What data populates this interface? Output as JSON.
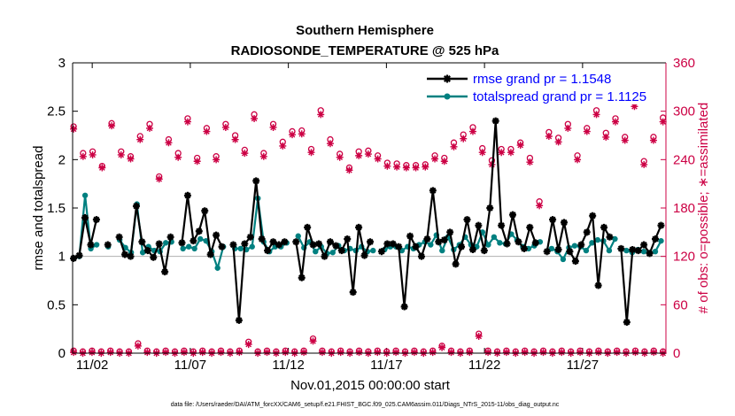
{
  "chart_data": {
    "type": "line",
    "title": "Southern Hemisphere",
    "subtitle": "RADIOSONDE_TEMPERATURE @ 525 hPa",
    "xlabel": "Nov.01,2015 00:00:00 start",
    "ylabel": "rmse and totalspread",
    "y2label": "# of obs: o=possible; ∗=assimilated",
    "x_ticks": [
      {
        "day": 2,
        "label": "11/02"
      },
      {
        "day": 7,
        "label": "11/07"
      },
      {
        "day": 12,
        "label": "11/12"
      },
      {
        "day": 17,
        "label": "11/17"
      },
      {
        "day": 22,
        "label": "11/22"
      },
      {
        "day": 27,
        "label": "11/27"
      }
    ],
    "xlim": [
      1.0,
      31.25
    ],
    "ylim": [
      0,
      3
    ],
    "y_ticks": [
      0,
      0.5,
      1,
      1.5,
      2,
      2.5,
      3
    ],
    "y_tick_labels": [
      "0",
      "0.5",
      "1",
      "1.5",
      "2",
      "2.5",
      "3"
    ],
    "y2lim": [
      0,
      360
    ],
    "y2_ticks": [
      0,
      60,
      120,
      180,
      240,
      300,
      360
    ],
    "y2_tick_labels": [
      "0",
      "60",
      "120",
      "180",
      "240",
      "300",
      "360"
    ],
    "footnote": "data file: /Users/raeder/DAI/ATM_forcXX/CAM6_setup/f.e21.FHIST_BGC.f09_025.CAM6assim.011/Diags_NTrS_2015-11/obs_diag_output.nc",
    "colors": {
      "rmse": "#000000",
      "spread": "#008080",
      "obs": "#cc0044",
      "legend_text": "#0000ff",
      "right_axis": "#cc0044"
    },
    "series": [
      {
        "name": "rmse grand pr = 1.1548",
        "values": [
          0.98,
          1.01,
          1.4,
          1.12,
          1.38,
          null,
          1.12,
          null,
          1.2,
          1.02,
          1.0,
          1.52,
          1.15,
          1.06,
          0.99,
          1.13,
          0.84,
          1.2,
          null,
          1.14,
          1.63,
          1.16,
          1.26,
          1.47,
          1.02,
          1.22,
          1.1,
          null,
          1.12,
          0.34,
          1.13,
          1.2,
          1.78,
          1.18,
          1.06,
          1.15,
          1.12,
          1.15,
          null,
          1.15,
          0.78,
          1.3,
          1.12,
          1.13,
          1.0,
          1.15,
          1.11,
          1.06,
          1.18,
          0.63,
          1.3,
          1.01,
          1.15,
          null,
          1.05,
          1.13,
          1.13,
          1.1,
          0.48,
          1.21,
          1.1,
          1.0,
          1.18,
          1.68,
          1.15,
          1.17,
          1.25,
          0.92,
          1.1,
          1.38,
          1.07,
          1.32,
          1.06,
          1.5,
          2.4,
          1.32,
          1.13,
          1.43,
          1.15,
          1.08,
          1.3,
          1.14,
          null,
          1.05,
          1.38,
          1.07,
          1.35,
          1.05,
          0.95,
          1.12,
          1.25,
          1.42,
          0.7,
          1.3,
          1.2,
          null,
          1.08,
          0.32,
          1.07,
          1.06,
          1.12,
          1.03,
          1.18,
          1.32
        ],
        "symbol": "asterisk"
      },
      {
        "name": "totalspread grand pr = 1.1125",
        "values": [
          0.98,
          1.0,
          1.63,
          1.08,
          1.12,
          null,
          1.1,
          null,
          1.17,
          1.09,
          1.04,
          1.54,
          1.04,
          1.1,
          1.06,
          1.05,
          1.14,
          1.15,
          null,
          1.08,
          1.1,
          1.08,
          1.18,
          1.16,
          1.05,
          0.88,
          1.1,
          null,
          1.08,
          1.08,
          1.07,
          1.1,
          1.6,
          1.15,
          1.05,
          1.1,
          1.1,
          1.14,
          null,
          1.21,
          1.09,
          1.15,
          1.05,
          1.1,
          1.03,
          1.04,
          1.11,
          1.06,
          1.08,
          1.06,
          1.1,
          1.05,
          1.06,
          null,
          1.07,
          1.1,
          1.1,
          1.06,
          1.1,
          1.08,
          1.12,
          1.15,
          1.12,
          1.22,
          1.06,
          1.2,
          1.07,
          1.12,
          1.2,
          1.12,
          1.1,
          1.25,
          1.12,
          1.2,
          1.14,
          1.13,
          1.23,
          1.17,
          1.1,
          1.08,
          1.11,
          1.15,
          null,
          1.08,
          1.05,
          0.97,
          1.09,
          1.11,
          1.1,
          1.06,
          1.14,
          1.17,
          1.16,
          1.06,
          1.18,
          null,
          1.06,
          1.04,
          1.07,
          1.05,
          1.03,
          1.05,
          1.16
        ],
        "symbol": "dot"
      },
      {
        "name": "obs possible",
        "axis": "right",
        "symbol": "circle",
        "values": [
          281,
          248,
          250,
          232,
          285,
          250,
          244,
          269,
          284,
          219,
          265,
          248,
          291,
          242,
          279,
          244,
          284,
          270,
          252,
          296,
          248,
          284,
          262,
          275,
          276,
          253,
          301,
          265,
          247,
          230,
          250,
          251,
          245,
          236,
          235,
          233,
          233,
          234,
          245,
          242,
          261,
          271,
          280,
          254,
          239,
          253,
          253,
          261,
          242,
          188,
          274,
          267,
          284,
          245,
          279,
          301,
          273,
          291,
          268,
          311,
          238,
          268,
          292
        ]
      },
      {
        "name": "obs assimilated",
        "axis": "right",
        "symbol": "asterisk",
        "values": [
          279,
          245,
          247,
          231,
          283,
          247,
          242,
          266,
          280,
          217,
          262,
          244,
          288,
          239,
          276,
          241,
          281,
          266,
          249,
          292,
          245,
          281,
          258,
          272,
          273,
          250,
          297,
          261,
          244,
          228,
          246,
          248,
          242,
          233,
          232,
          231,
          231,
          232,
          242,
          239,
          257,
          267,
          276,
          250,
          235,
          250,
          250,
          259,
          238,
          184,
          270,
          263,
          280,
          241,
          276,
          297,
          269,
          288,
          265,
          307,
          235,
          265,
          288
        ]
      },
      {
        "name": "obs low possible",
        "axis": "right",
        "symbol": "circle",
        "values": [
          3,
          2,
          3,
          2,
          3,
          2,
          2,
          12,
          3,
          2,
          3,
          2,
          3,
          2,
          3,
          2,
          3,
          2,
          3,
          14,
          2,
          3,
          2,
          3,
          2,
          3,
          18,
          3,
          2,
          3,
          2,
          3,
          2,
          3,
          2,
          3,
          2,
          3,
          2,
          3,
          9,
          3,
          2,
          3,
          24,
          3,
          2,
          3,
          2,
          3,
          2,
          3,
          2,
          3,
          2,
          3,
          2,
          3,
          2,
          3,
          2,
          3,
          2,
          3,
          2
        ]
      },
      {
        "name": "obs low assimilated",
        "axis": "right",
        "symbol": "asterisk",
        "values": [
          2,
          1,
          2,
          1,
          2,
          1,
          1,
          10,
          2,
          1,
          2,
          1,
          2,
          1,
          2,
          1,
          2,
          1,
          2,
          12,
          1,
          2,
          1,
          2,
          1,
          2,
          16,
          2,
          1,
          2,
          1,
          2,
          1,
          2,
          1,
          2,
          1,
          2,
          1,
          2,
          8,
          2,
          1,
          2,
          22,
          2,
          1,
          2,
          1,
          2,
          1,
          2,
          1,
          2,
          1,
          2,
          1,
          2,
          1,
          2,
          1,
          2,
          1,
          2,
          1
        ]
      }
    ],
    "legend_location": "top-right"
  }
}
